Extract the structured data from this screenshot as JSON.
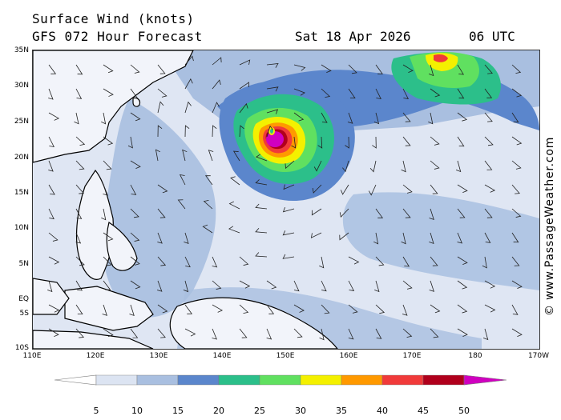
{
  "header": {
    "title": "Surface Wind (knots)",
    "subtitle": "GFS 072 Hour Forecast",
    "date": "Sat 18 Apr 2026",
    "time": "06 UTC"
  },
  "credit": "© www.PassageWeather.com",
  "axes": {
    "lat_labels": [
      "35N",
      "30N",
      "25N",
      "20N",
      "15N",
      "10N",
      "5N",
      "EQ",
      "5S",
      "10S"
    ],
    "lon_labels": [
      "110E",
      "120E",
      "130E",
      "140E",
      "150E",
      "160E",
      "170E",
      "180",
      "170W"
    ]
  },
  "legend": {
    "labels": [
      "5",
      "10",
      "15",
      "20",
      "25",
      "30",
      "35",
      "40",
      "45",
      "50"
    ],
    "colors": [
      "#ffffff",
      "#dce4f2",
      "#a9bfe0",
      "#5b86cc",
      "#2cbf8a",
      "#60e060",
      "#f4f000",
      "#ff9900",
      "#f03a3a",
      "#b0001c",
      "#d000c0"
    ]
  },
  "map_features": {
    "storm": "typhoon centered near 23N 147E",
    "icons": [
      "coastline",
      "wind-barb"
    ]
  }
}
